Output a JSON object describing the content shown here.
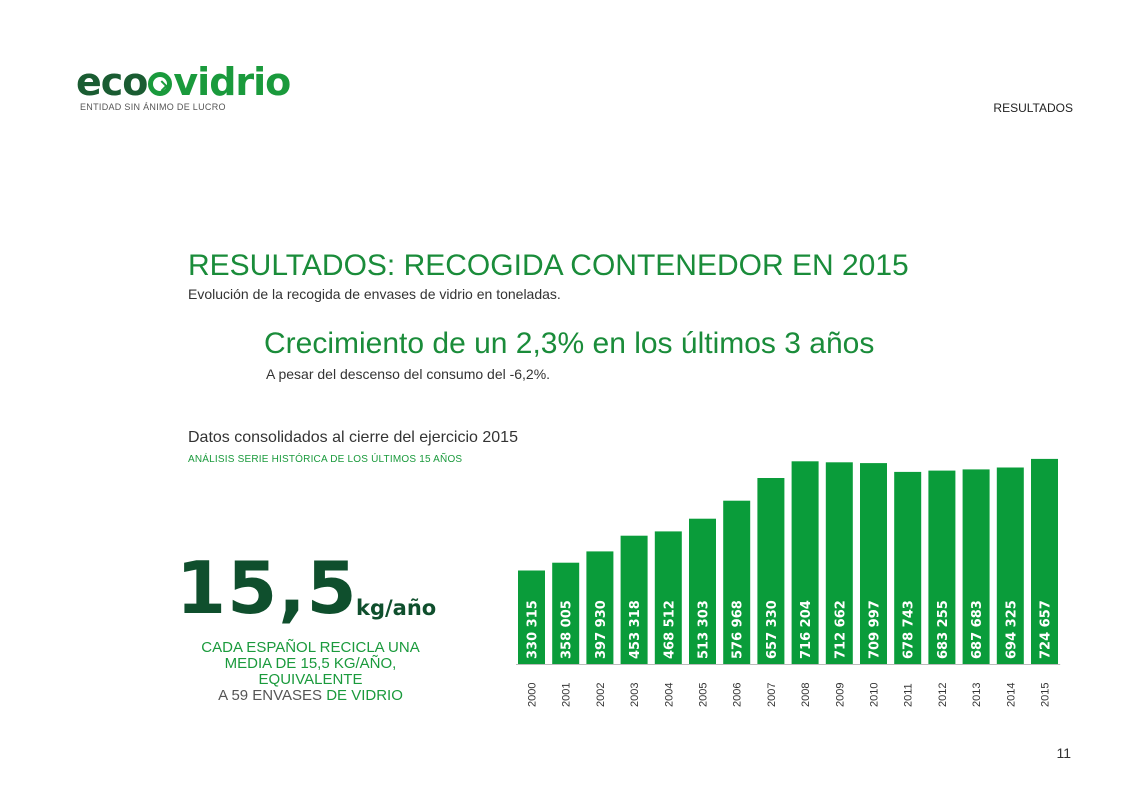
{
  "header": {
    "logo_text_part1": "eco",
    "logo_text_part2": "vidrio",
    "logo_tagline": "ENTIDAD SIN ÁNIMO DE LUCRO",
    "section": "RESULTADOS"
  },
  "title": "RESULTADOS: RECOGIDA CONTENEDOR EN 2015",
  "subtitle": "Evolución de la recogida de envases de vidrio en toneladas.",
  "headline": "Crecimiento de un 2,3% en los últimos 3 años",
  "headline_note": "A pesar del descenso del consumo del -6,2%.",
  "data_note": "Datos consolidados al cierre del ejercicio 2015",
  "series_note": "ANÁLISIS SERIE HISTÓRICA DE LOS ÚLTIMOS 15 AÑOS",
  "stat": {
    "value": "15,5",
    "unit": "kg/año",
    "caption_line1": "CADA ESPAÑOL RECICLA UNA",
    "caption_line2": "MEDIA DE 15,5 KG/AÑO,",
    "caption_line3": "EQUIVALENTE",
    "caption_line4a": "A 59 ENVASES ",
    "caption_line4b": "DE VIDRIO"
  },
  "page_number": "11",
  "colors": {
    "bar": "#0a9c3a",
    "dark_green": "#0f4f2d",
    "accent": "#1a8c3a"
  },
  "chart_data": {
    "type": "bar",
    "categories": [
      "2000",
      "2001",
      "2002",
      "2003",
      "2004",
      "2005",
      "2006",
      "2007",
      "2008",
      "2009",
      "2010",
      "2011",
      "2012",
      "2013",
      "2014",
      "2015"
    ],
    "values": [
      330315,
      358005,
      397930,
      453318,
      468512,
      513303,
      576968,
      657330,
      716204,
      712662,
      709997,
      678743,
      683255,
      687683,
      694325,
      724657
    ],
    "labels": [
      "330 315",
      "358 005",
      "397 930",
      "453 318",
      "468 512",
      "513 303",
      "576 968",
      "657 330",
      "716 204",
      "712 662",
      "709 997",
      "678 743",
      "683 255",
      "687 683",
      "694 325",
      "724 657"
    ],
    "ylim": [
      0,
      735000
    ],
    "grid": false,
    "legend": "none"
  }
}
